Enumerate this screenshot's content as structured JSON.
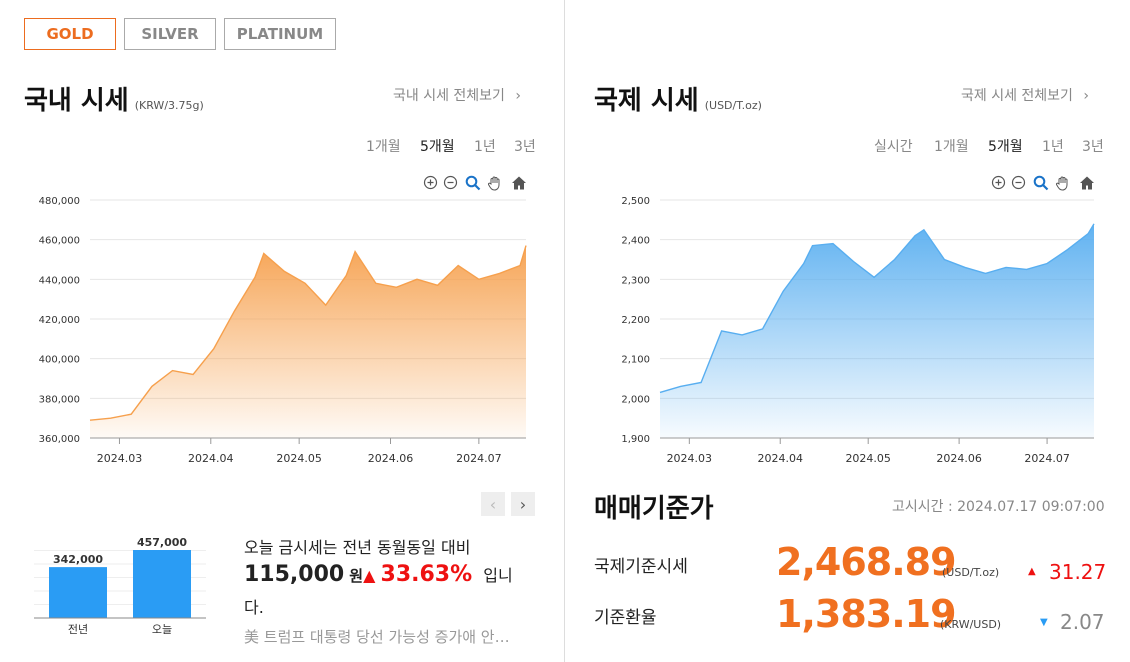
{
  "metal_tabs": [
    {
      "label": "GOLD",
      "active": true
    },
    {
      "label": "SILVER",
      "active": false
    },
    {
      "label": "PLATINUM",
      "active": false
    }
  ],
  "domestic": {
    "title": "국내 시세",
    "unit": "(KRW/3.75g)",
    "view_all": "국내 시세 전체보기",
    "periods": [
      "1개월",
      "5개월",
      "1년",
      "3년"
    ],
    "selected_period": "5개월"
  },
  "international": {
    "title": "국제 시세",
    "unit": "(USD/T.oz)",
    "view_all": "국제 시세 전체보기",
    "periods": [
      "실시간",
      "1개월",
      "5개월",
      "1년",
      "3년"
    ],
    "selected_period": "5개월"
  },
  "chart_tools": [
    "zoom-in-icon",
    "zoom-out-icon",
    "magnifier-icon",
    "pan-hand-icon",
    "home-icon"
  ],
  "chart_data": [
    {
      "type": "area",
      "color": "#f6a04d",
      "x_ticks": [
        "2024.03",
        "2024.04",
        "2024.05",
        "2024.06",
        "2024.07"
      ],
      "y_ticks": [
        "480,000",
        "460,000",
        "440,000",
        "420,000",
        "400,000",
        "380,000",
        "360,000"
      ],
      "ylim": [
        360000,
        480000
      ],
      "x": [
        "2024.02.20",
        "2024.02.27",
        "2024.03.05",
        "2024.03.12",
        "2024.03.19",
        "2024.03.26",
        "2024.04.02",
        "2024.04.09",
        "2024.04.16",
        "2024.04.19",
        "2024.04.26",
        "2024.05.03",
        "2024.05.10",
        "2024.05.17",
        "2024.05.20",
        "2024.05.27",
        "2024.06.03",
        "2024.06.10",
        "2024.06.17",
        "2024.06.24",
        "2024.07.01",
        "2024.07.08",
        "2024.07.15",
        "2024.07.17"
      ],
      "values": [
        369000,
        370000,
        372000,
        386000,
        394000,
        392000,
        405000,
        424000,
        441000,
        453000,
        444000,
        438000,
        427000,
        442000,
        454000,
        438000,
        436000,
        440000,
        437000,
        447000,
        440000,
        443000,
        447000,
        457000
      ]
    },
    {
      "type": "area",
      "color": "#58aef0",
      "x_ticks": [
        "2024.03",
        "2024.04",
        "2024.05",
        "2024.06",
        "2024.07"
      ],
      "y_ticks": [
        "2,500",
        "2,400",
        "2,300",
        "2,200",
        "2,100",
        "2,000",
        "1,900"
      ],
      "ylim": [
        1900,
        2500
      ],
      "x": [
        "2024.02.20",
        "2024.02.27",
        "2024.03.05",
        "2024.03.12",
        "2024.03.19",
        "2024.03.26",
        "2024.04.02",
        "2024.04.09",
        "2024.04.12",
        "2024.04.19",
        "2024.04.26",
        "2024.05.03",
        "2024.05.10",
        "2024.05.17",
        "2024.05.20",
        "2024.05.27",
        "2024.06.03",
        "2024.06.10",
        "2024.06.17",
        "2024.06.24",
        "2024.07.01",
        "2024.07.08",
        "2024.07.15",
        "2024.07.17"
      ],
      "values": [
        2015,
        2030,
        2040,
        2170,
        2160,
        2175,
        2270,
        2340,
        2385,
        2390,
        2345,
        2305,
        2350,
        2410,
        2425,
        2350,
        2330,
        2315,
        2330,
        2325,
        2340,
        2375,
        2415,
        2440
      ]
    },
    {
      "type": "bar",
      "categories": [
        "전년",
        "오늘"
      ],
      "values": [
        342000,
        457000
      ],
      "labels": [
        "342,000",
        "457,000"
      ],
      "color": "#2a9cf4"
    }
  ],
  "summary": {
    "line1": "오늘 금시세는 전년 동월동일 대비",
    "amount": "115,000",
    "won": "원",
    "arrow": "▲",
    "percent": "33.63%",
    "suffix": "입니",
    "line3": "다."
  },
  "news": "美 트럼프 대통령 당선 가능성 증가애 안…",
  "reference": {
    "title": "매매기준가",
    "timestamp": "고시시간 : 2024.07.17 09:07:00",
    "rows": [
      {
        "label": "국제기준시세",
        "value": "2,468.89",
        "unit": "(USD/T.oz)",
        "arrow": "▲",
        "change": "31.27",
        "direction": "up"
      },
      {
        "label": "기준환율",
        "value": "1,383.19",
        "unit": "(KRW/USD)",
        "arrow": "▼",
        "change": "2.07",
        "direction": "down"
      }
    ]
  }
}
